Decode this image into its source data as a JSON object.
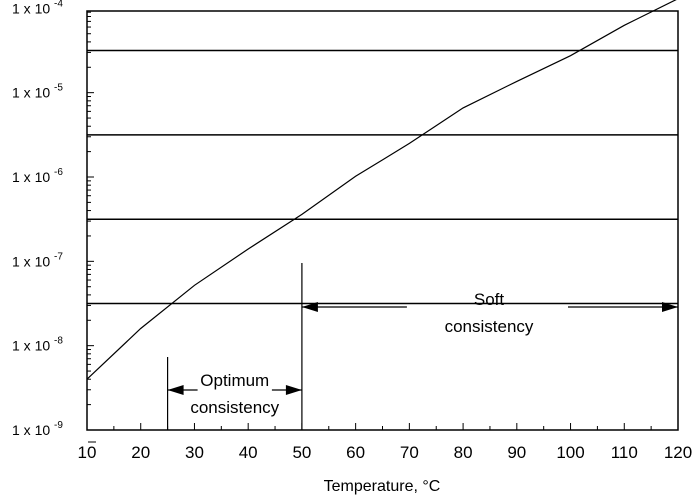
{
  "chart_data": {
    "type": "line",
    "title": "",
    "xlabel": "Temperature, °C",
    "ylabel": "",
    "x_scale": "linear",
    "y_scale": "log",
    "xlim": [
      10,
      120
    ],
    "ylim": [
      1e-09,
      0.001
    ],
    "x_ticks": [
      "10",
      "20",
      "30",
      "40",
      "50",
      "60",
      "70",
      "80",
      "90",
      "100",
      "110",
      "120"
    ],
    "y_ticks": [
      {
        "base": "1 x 10",
        "exp": "-9",
        "value": 1e-09
      },
      {
        "base": "1 x 10",
        "exp": "-8",
        "value": 1e-08
      },
      {
        "base": "1 x 10",
        "exp": "-7",
        "value": 1e-07
      },
      {
        "base": "1 x 10",
        "exp": "-6",
        "value": 1e-06
      },
      {
        "base": "1 x 10",
        "exp": "-5",
        "value": 1e-05
      },
      {
        "base": "1 x 10",
        "exp": "-4",
        "value": 0.0001
      }
    ],
    "grid_lines_y": [
      3.16e-08,
      3.16e-07,
      3.16e-06,
      3.16e-05
    ],
    "grid": true,
    "series": [
      {
        "x": [
          10,
          20,
          30,
          40,
          50,
          60,
          70,
          80,
          90,
          100,
          110,
          120
        ],
        "y": [
          4e-09,
          1.6e-08,
          5.2e-08,
          1.4e-07,
          3.6e-07,
          1.02e-06,
          2.5e-06,
          6.6e-06,
          1.36e-05,
          2.74e-05,
          6.3e-05,
          0.00013
        ]
      }
    ],
    "annotations": [
      {
        "lines": [
          "Optimum",
          "consistency"
        ],
        "x_range": [
          25,
          50
        ]
      },
      {
        "lines": [
          "Soft",
          "consistency"
        ],
        "x_range": [
          50,
          120
        ]
      }
    ]
  }
}
